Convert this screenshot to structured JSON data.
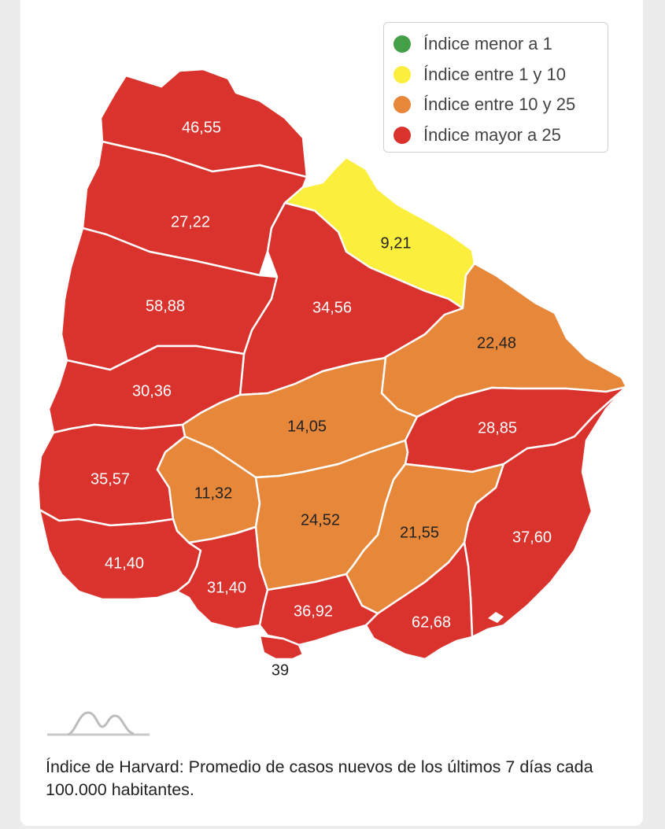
{
  "legend": [
    {
      "label": "Índice menor a 1",
      "color": "#43a047"
    },
    {
      "label": "Índice entre 1 y 10",
      "color": "#fbee3c"
    },
    {
      "label": "Índice entre 10 y 25",
      "color": "#e6873a"
    },
    {
      "label": "Índice mayor a 25",
      "color": "#da332e"
    }
  ],
  "colors": {
    "red": "#da332e",
    "orange": "#e6873a",
    "yellow": "#fbee3c",
    "label_on_red": "#ffffff",
    "label_on_orange": "#222222"
  },
  "departments": [
    {
      "value": "46,55",
      "category": "red"
    },
    {
      "value": "27,22",
      "category": "red"
    },
    {
      "value": "9,21",
      "category": "yellow"
    },
    {
      "value": "58,88",
      "category": "red"
    },
    {
      "value": "34,56",
      "category": "red"
    },
    {
      "value": "22,48",
      "category": "orange"
    },
    {
      "value": "30,36",
      "category": "red"
    },
    {
      "value": "14,05",
      "category": "orange"
    },
    {
      "value": "28,85",
      "category": "red"
    },
    {
      "value": "35,57",
      "category": "red"
    },
    {
      "value": "11,32",
      "category": "orange"
    },
    {
      "value": "24,52",
      "category": "orange"
    },
    {
      "value": "21,55",
      "category": "orange"
    },
    {
      "value": "37,60",
      "category": "red"
    },
    {
      "value": "41,40",
      "category": "red"
    },
    {
      "value": "31,40",
      "category": "red"
    },
    {
      "value": "36,92",
      "category": "red"
    },
    {
      "value": "62,68",
      "category": "red"
    },
    {
      "value": "39",
      "category": "red"
    }
  ],
  "caption": "Índice de Harvard: Promedio de casos nuevos de los últimos 7 días cada 100.000 habitantes."
}
